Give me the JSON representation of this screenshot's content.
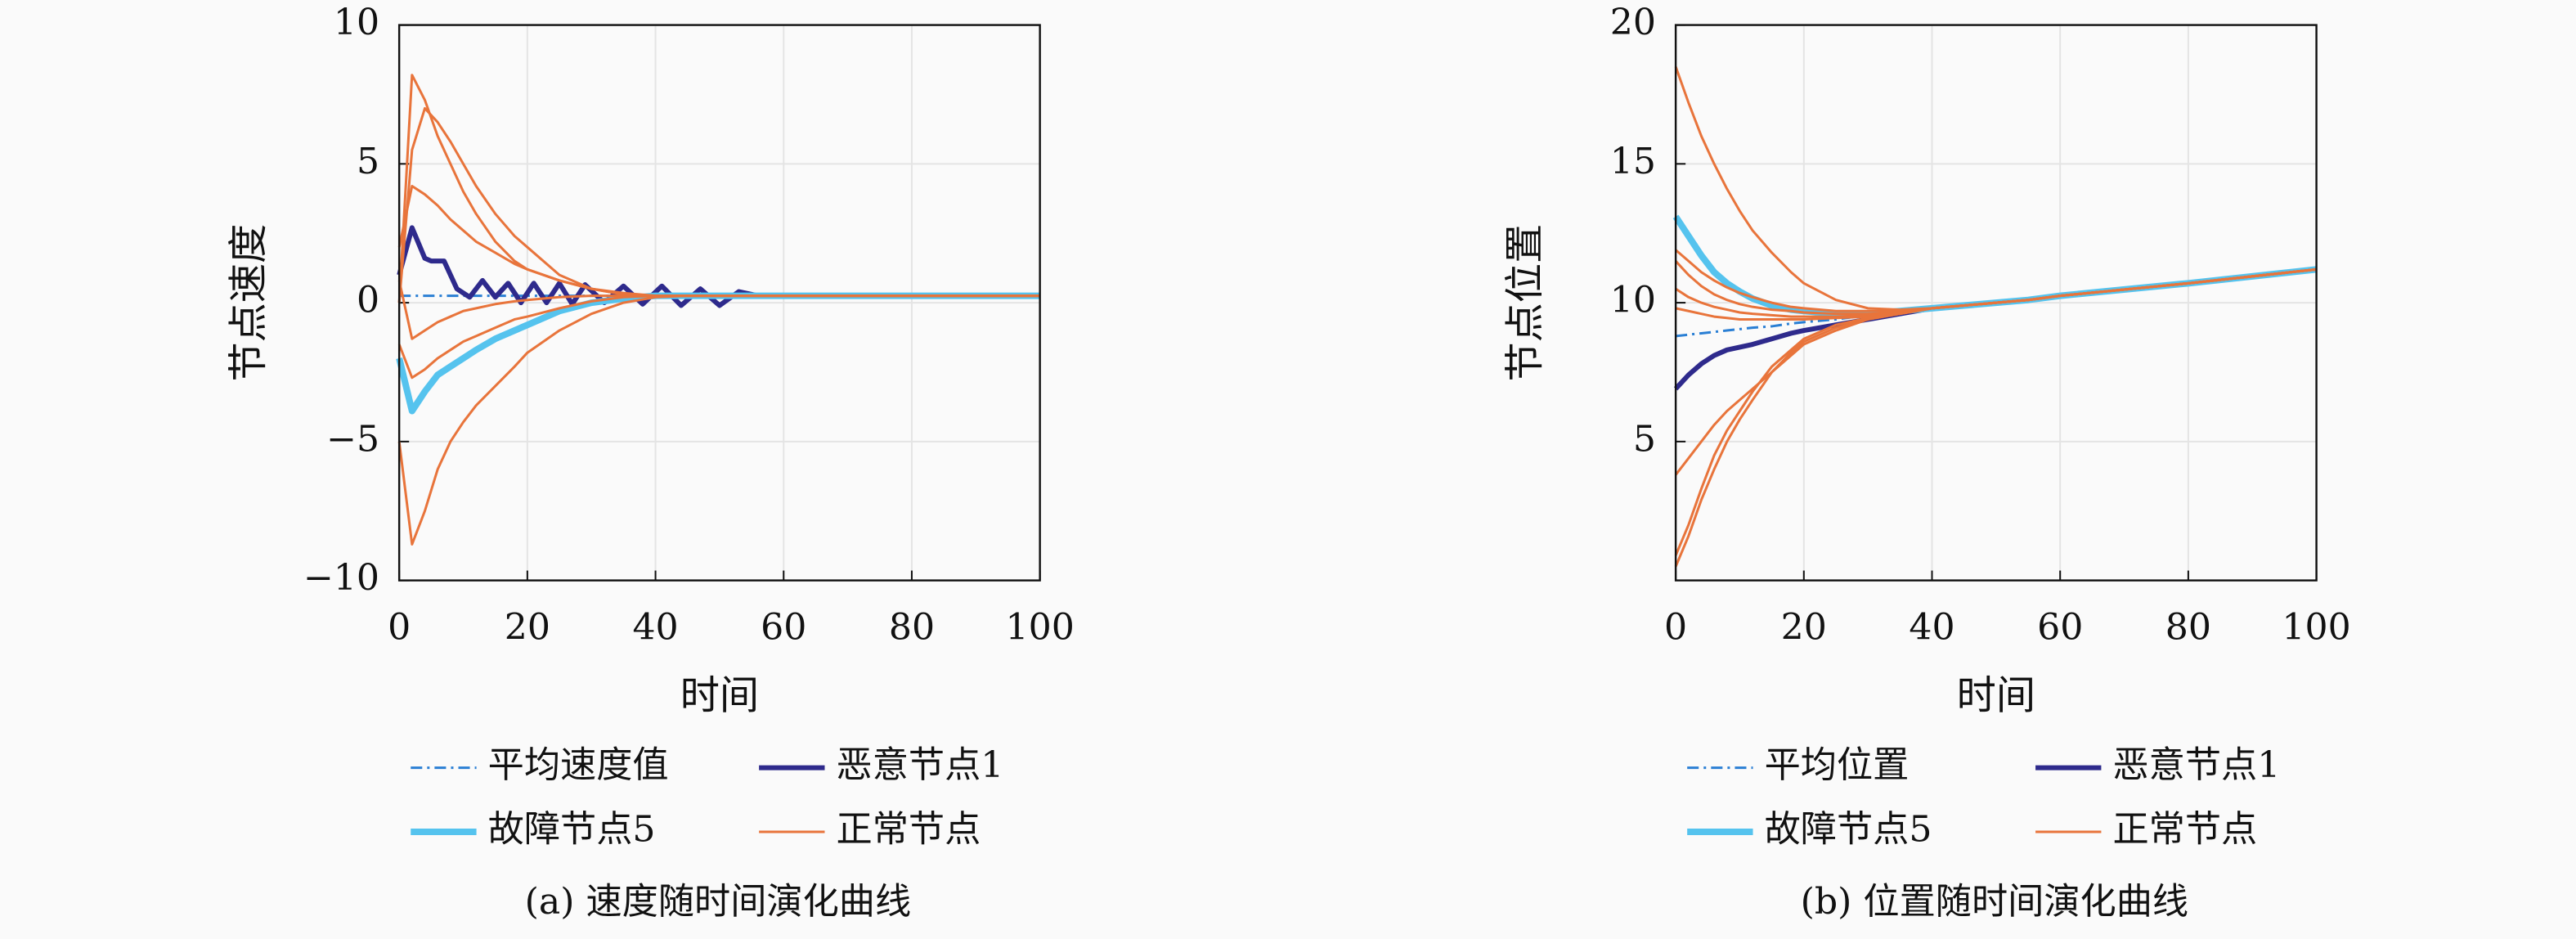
{
  "chart_data": [
    {
      "type": "line",
      "xlabel": "时间",
      "ylabel": "节点速度",
      "caption": "(a) 速度随时间演化曲线",
      "xlim": [
        0,
        100
      ],
      "ylim": [
        -10,
        10
      ],
      "xticks": [
        0,
        20,
        40,
        60,
        80,
        100
      ],
      "yticks": [
        {
          "value": -10,
          "label": "−10"
        },
        {
          "value": -5,
          "label": "−5"
        },
        0,
        5,
        10
      ],
      "grid": true,
      "x": [
        0,
        2,
        4,
        6,
        8,
        10,
        12,
        15,
        18,
        20,
        25,
        30,
        35,
        40,
        45,
        50,
        55,
        60,
        80,
        100
      ],
      "series": [
        {
          "name": "平均速度值",
          "color": "#2a7fd4",
          "style": "dashdot",
          "width": 1.5,
          "values": [
            0.25,
            0.25,
            0.25,
            0.25,
            0.25,
            0.25,
            0.25,
            0.25,
            0.25,
            0.25,
            0.25,
            0.25,
            0.25,
            0.25,
            0.25,
            0.25,
            0.25,
            0.25,
            0.25,
            0.25
          ]
        },
        {
          "name": "恶意节点1",
          "color": "#2e2a8c",
          "width": 3,
          "x": [
            0,
            2,
            4,
            5,
            7,
            9,
            11,
            13,
            15,
            17,
            19,
            21,
            23,
            25,
            27,
            29,
            32,
            35,
            38,
            41,
            44,
            47,
            50,
            53,
            56,
            100
          ],
          "values": [
            1.0,
            2.7,
            1.6,
            1.5,
            1.5,
            0.5,
            0.2,
            0.8,
            0.2,
            0.7,
            0.0,
            0.7,
            0.0,
            0.7,
            -0.05,
            0.65,
            0.0,
            0.6,
            -0.05,
            0.6,
            -0.1,
            0.5,
            -0.1,
            0.4,
            0.25,
            0.25
          ]
        },
        {
          "name": "故障节点5",
          "color": "#55c3ee",
          "width": 4,
          "values": [
            -2.0,
            -3.9,
            -3.2,
            -2.6,
            -2.3,
            -2.0,
            -1.7,
            -1.3,
            -1.0,
            -0.8,
            -0.3,
            0.0,
            0.15,
            0.25,
            0.25,
            0.25,
            0.25,
            0.25,
            0.25,
            0.25
          ]
        },
        {
          "name": "正常节点",
          "color": "#e8743b",
          "width": 1.5,
          "values": [
            0.0,
            8.2,
            7.3,
            6.0,
            5.0,
            4.0,
            3.2,
            2.2,
            1.5,
            1.2,
            0.8,
            0.5,
            0.35,
            0.25,
            0.25,
            0.25,
            0.25,
            0.25,
            0.25,
            0.25
          ]
        },
        {
          "name": "正常节点",
          "color": "#e8743b",
          "width": 1.5,
          "values": [
            0.0,
            5.5,
            7.0,
            6.5,
            5.8,
            5.0,
            4.2,
            3.2,
            2.4,
            2.0,
            1.0,
            0.5,
            0.3,
            0.25,
            0.25,
            0.25,
            0.25,
            0.25,
            0.25,
            0.25
          ]
        },
        {
          "name": "正常节点",
          "color": "#e8743b",
          "width": 1.5,
          "values": [
            2.0,
            4.2,
            3.9,
            3.5,
            3.0,
            2.6,
            2.2,
            1.8,
            1.4,
            1.2,
            0.8,
            0.5,
            0.3,
            0.25,
            0.25,
            0.25,
            0.25,
            0.25,
            0.25,
            0.25
          ]
        },
        {
          "name": "正常节点",
          "color": "#e8743b",
          "width": 1.5,
          "values": [
            -5.0,
            -8.7,
            -7.5,
            -6.0,
            -5.0,
            -4.3,
            -3.7,
            -3.0,
            -2.3,
            -1.8,
            -1.0,
            -0.4,
            0.0,
            0.2,
            0.25,
            0.25,
            0.25,
            0.25,
            0.25,
            0.25
          ]
        },
        {
          "name": "正常节点",
          "color": "#e8743b",
          "width": 1.5,
          "values": [
            -1.5,
            -2.7,
            -2.4,
            -2.0,
            -1.7,
            -1.4,
            -1.2,
            -0.9,
            -0.6,
            -0.5,
            -0.2,
            0.05,
            0.2,
            0.25,
            0.25,
            0.25,
            0.25,
            0.25,
            0.25,
            0.25
          ]
        },
        {
          "name": "正常节点",
          "color": "#e8743b",
          "width": 1.5,
          "values": [
            0.8,
            -1.3,
            -1.0,
            -0.7,
            -0.5,
            -0.3,
            -0.2,
            -0.05,
            0.05,
            0.1,
            0.2,
            0.25,
            0.25,
            0.25,
            0.25,
            0.25,
            0.25,
            0.25,
            0.25,
            0.25
          ]
        }
      ]
    },
    {
      "type": "line",
      "xlabel": "时间",
      "ylabel": "节点位置",
      "caption": "(b) 位置随时间演化曲线",
      "xlim": [
        0,
        100
      ],
      "ylim": [
        0,
        20
      ],
      "xticks": [
        0,
        20,
        40,
        60,
        80,
        100
      ],
      "yticks": [
        5,
        10,
        15,
        20
      ],
      "grid": true,
      "x": [
        0,
        2,
        4,
        6,
        8,
        10,
        12,
        15,
        18,
        20,
        25,
        30,
        35,
        40,
        45,
        50,
        55,
        60,
        80,
        100
      ],
      "series": [
        {
          "name": "平均位置",
          "color": "#2a7fd4",
          "style": "dashdot",
          "width": 1.5,
          "values": [
            8.8,
            8.85,
            8.9,
            8.95,
            9.0,
            9.05,
            9.1,
            9.15,
            9.25,
            9.3,
            9.4,
            9.55,
            9.65,
            9.8,
            9.9,
            10.0,
            10.1,
            10.25,
            10.7,
            11.2
          ]
        },
        {
          "name": "恶意节点1",
          "color": "#2e2a8c",
          "width": 3,
          "values": [
            6.9,
            7.4,
            7.8,
            8.1,
            8.3,
            8.4,
            8.5,
            8.7,
            8.9,
            9.0,
            9.2,
            9.4,
            9.6,
            9.8,
            9.9,
            10.0,
            10.1,
            10.25,
            10.7,
            11.2
          ]
        },
        {
          "name": "故障节点5",
          "color": "#55c3ee",
          "width": 4,
          "values": [
            13.1,
            12.4,
            11.7,
            11.1,
            10.7,
            10.4,
            10.15,
            9.9,
            9.75,
            9.7,
            9.6,
            9.6,
            9.7,
            9.8,
            9.9,
            10.0,
            10.1,
            10.25,
            10.7,
            11.2
          ]
        },
        {
          "name": "正常节点",
          "color": "#e8743b",
          "width": 1.5,
          "values": [
            18.5,
            17.2,
            16.0,
            15.0,
            14.1,
            13.3,
            12.6,
            11.8,
            11.1,
            10.7,
            10.1,
            9.8,
            9.75,
            9.8,
            9.9,
            10.0,
            10.1,
            10.25,
            10.7,
            11.2
          ]
        },
        {
          "name": "正常节点",
          "color": "#e8743b",
          "width": 1.5,
          "values": [
            11.9,
            11.5,
            11.1,
            10.8,
            10.55,
            10.35,
            10.2,
            10.0,
            9.85,
            9.8,
            9.7,
            9.7,
            9.7,
            9.8,
            9.9,
            10.0,
            10.1,
            10.25,
            10.7,
            11.2
          ]
        },
        {
          "name": "正常节点",
          "color": "#e8743b",
          "width": 1.5,
          "values": [
            11.5,
            11.0,
            10.6,
            10.3,
            10.1,
            9.95,
            9.85,
            9.75,
            9.7,
            9.65,
            9.6,
            9.6,
            9.65,
            9.8,
            9.9,
            10.0,
            10.1,
            10.25,
            10.7,
            11.2
          ]
        },
        {
          "name": "正常节点",
          "color": "#e8743b",
          "width": 1.5,
          "values": [
            10.5,
            10.2,
            10.0,
            9.85,
            9.75,
            9.65,
            9.6,
            9.55,
            9.5,
            9.5,
            9.5,
            9.55,
            9.65,
            9.8,
            9.9,
            10.0,
            10.1,
            10.25,
            10.7,
            11.2
          ]
        },
        {
          "name": "正常节点",
          "color": "#e8743b",
          "width": 1.5,
          "values": [
            9.8,
            9.7,
            9.6,
            9.5,
            9.45,
            9.4,
            9.4,
            9.4,
            9.4,
            9.4,
            9.45,
            9.5,
            9.65,
            9.8,
            9.9,
            10.0,
            10.1,
            10.25,
            10.7,
            11.2
          ]
        },
        {
          "name": "正常节点",
          "color": "#e8743b",
          "width": 1.5,
          "values": [
            3.8,
            4.4,
            5.0,
            5.6,
            6.1,
            6.5,
            6.9,
            7.5,
            8.1,
            8.5,
            9.0,
            9.4,
            9.6,
            9.8,
            9.9,
            10.0,
            10.1,
            10.25,
            10.7,
            11.2
          ]
        },
        {
          "name": "正常节点",
          "color": "#e8743b",
          "width": 1.5,
          "values": [
            0.5,
            1.6,
            2.9,
            4.0,
            5.0,
            5.8,
            6.5,
            7.5,
            8.2,
            8.6,
            9.1,
            9.4,
            9.6,
            9.8,
            9.9,
            10.0,
            10.1,
            10.25,
            10.7,
            11.2
          ]
        },
        {
          "name": "正常节点",
          "color": "#e8743b",
          "width": 1.5,
          "values": [
            0.9,
            2.0,
            3.3,
            4.5,
            5.4,
            6.1,
            6.8,
            7.7,
            8.3,
            8.7,
            9.2,
            9.45,
            9.6,
            9.8,
            9.9,
            10.0,
            10.1,
            10.25,
            10.7,
            11.2
          ]
        }
      ]
    }
  ]
}
